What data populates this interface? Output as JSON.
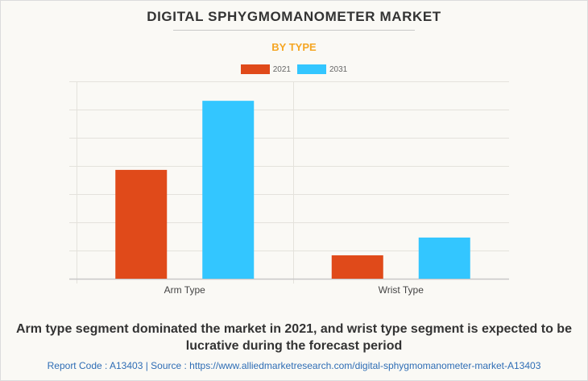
{
  "colors": {
    "series_2021": "#e04a1a",
    "series_2031": "#33c6ff",
    "title": "#333333",
    "subtitle": "#f5a623",
    "footer": "#2e6db5"
  },
  "chart_data": {
    "type": "bar",
    "title": "DIGITAL SPHYGMOMANOMETER MARKET",
    "subtitle": "BY TYPE",
    "categories": [
      "Arm Type",
      "Wrist Type"
    ],
    "series": [
      {
        "name": "2021",
        "values": [
          3.86,
          0.83
        ]
      },
      {
        "name": "2031",
        "values": [
          6.31,
          1.46
        ]
      }
    ],
    "xlabel": "",
    "ylabel": "",
    "ylim": [
      0,
      7
    ],
    "y_ticks_hidden": true,
    "grid": true,
    "legend": "top-center"
  },
  "caption": "Arm type segment dominated the market in 2021, and wrist type segment is expected to be lucrative during the forecast period",
  "footer": "Report Code : A13403  |  Source : https://www.alliedmarketresearch.com/digital-sphygmomanometer-market-A13403"
}
